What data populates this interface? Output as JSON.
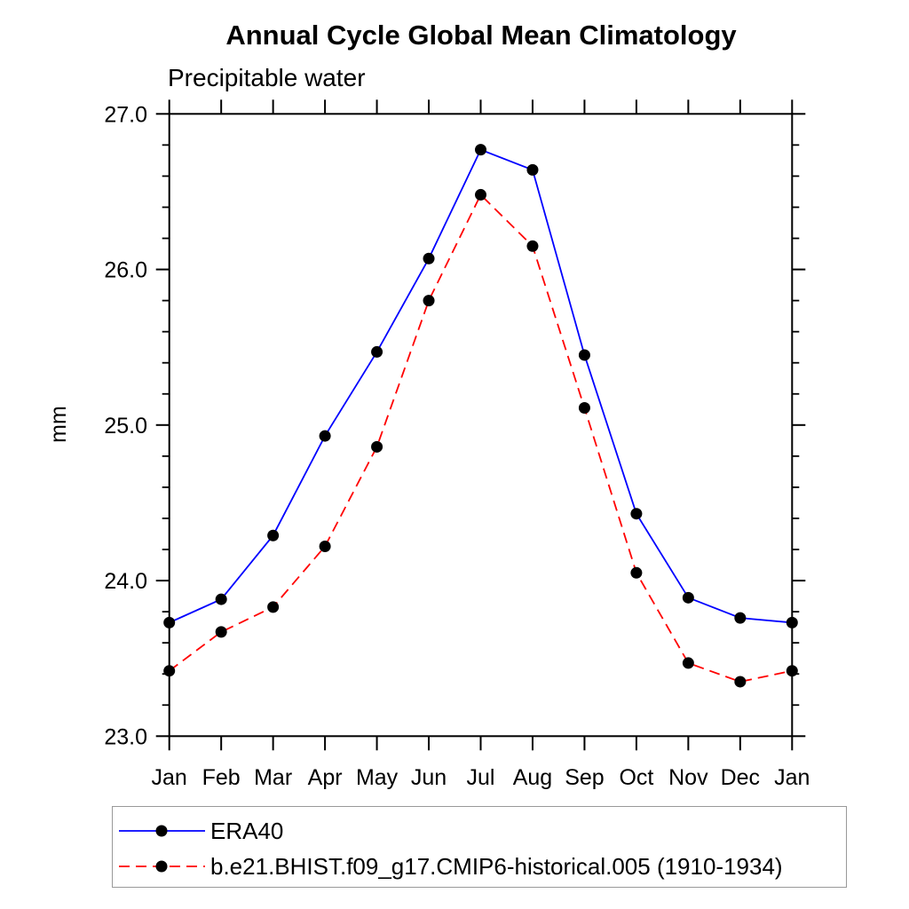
{
  "title": "Annual Cycle Global Mean Climatology",
  "subtitle": "Precipitable water",
  "legend": {
    "items": [
      {
        "label": "ERA40",
        "color": "#0000ff",
        "line_style": "solid",
        "marker": "filled-circle",
        "marker_color": "#000000"
      },
      {
        "label": "b.e21.BHIST.f09_g17.CMIP6-historical.005 (1910-1934)",
        "color": "#ff0000",
        "line_style": "dashed",
        "marker": "filled-circle",
        "marker_color": "#000000"
      }
    ]
  },
  "chart_data": {
    "type": "line",
    "title": "Annual Cycle Global Mean Climatology",
    "subtitle": "Precipitable water",
    "ylabel": "mm",
    "xlabel": "",
    "categories": [
      "Jan",
      "Feb",
      "Mar",
      "Apr",
      "May",
      "Jun",
      "Jul",
      "Aug",
      "Sep",
      "Oct",
      "Nov",
      "Dec",
      "Jan"
    ],
    "series": [
      {
        "name": "ERA40",
        "color": "#0000ff",
        "line_style": "solid",
        "marker": "filled-circle",
        "marker_color": "#000000",
        "values": [
          23.73,
          23.88,
          24.29,
          24.93,
          25.47,
          26.07,
          26.77,
          26.64,
          25.45,
          24.43,
          23.89,
          23.76,
          23.73
        ]
      },
      {
        "name": "b.e21.BHIST.f09_g17.CMIP6-historical.005 (1910-1934)",
        "color": "#ff0000",
        "line_style": "dashed",
        "marker": "filled-circle",
        "marker_color": "#000000",
        "values": [
          23.42,
          23.67,
          23.83,
          24.22,
          24.86,
          25.8,
          26.48,
          26.15,
          25.11,
          24.05,
          23.47,
          23.35,
          23.42
        ]
      }
    ],
    "ylim": [
      23.0,
      27.0
    ],
    "y_major_ticks": [
      23.0,
      24.0,
      25.0,
      26.0,
      27.0
    ],
    "y_major_tick_labels": [
      "23.0",
      "24.0",
      "25.0",
      "26.0",
      "27.0"
    ],
    "y_minor_step": 0.2,
    "grid": false,
    "legend_position": "bottom-left-box",
    "axis_color": "#000000"
  }
}
